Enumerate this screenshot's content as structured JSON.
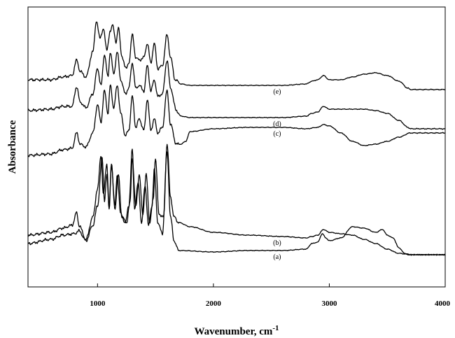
{
  "chart_data": {
    "type": "line",
    "xlabel": "Wavenumber, cm",
    "xlabel_sup": "-1",
    "ylabel": "Absorbance",
    "xlim": [
      400,
      4000
    ],
    "ylim": [
      0,
      10
    ],
    "x_ticks": [
      1000,
      2000,
      3000,
      4000
    ],
    "y_ticks_shown": false,
    "grid": false,
    "legend": "none",
    "series": [
      {
        "name": "(a)",
        "offset": 1.3,
        "points": [
          [
            400,
            0.55
          ],
          [
            600,
            0.65
          ],
          [
            700,
            0.8
          ],
          [
            780,
            0.9
          ],
          [
            820,
            1.35
          ],
          [
            840,
            0.9
          ],
          [
            900,
            0.4
          ],
          [
            960,
            1.2
          ],
          [
            1000,
            2.2
          ],
          [
            1030,
            3.4
          ],
          [
            1050,
            2.0
          ],
          [
            1080,
            3.1
          ],
          [
            1100,
            1.6
          ],
          [
            1120,
            3.1
          ],
          [
            1150,
            1.6
          ],
          [
            1170,
            2.7
          ],
          [
            1200,
            1.3
          ],
          [
            1240,
            1.0
          ],
          [
            1270,
            1.6
          ],
          [
            1300,
            3.6
          ],
          [
            1320,
            1.5
          ],
          [
            1350,
            2.4
          ],
          [
            1380,
            1.0
          ],
          [
            1410,
            2.3
          ],
          [
            1440,
            0.9
          ],
          [
            1470,
            1.6
          ],
          [
            1490,
            2.9
          ],
          [
            1520,
            1.0
          ],
          [
            1560,
            0.6
          ],
          [
            1600,
            3.5
          ],
          [
            1630,
            1.2
          ],
          [
            1660,
            0.35
          ],
          [
            1700,
            0.0
          ],
          [
            2000,
            -0.05
          ],
          [
            2300,
            0.0
          ],
          [
            2600,
            0.0
          ],
          [
            2800,
            0.05
          ],
          [
            2850,
            0.25
          ],
          [
            2900,
            0.3
          ],
          [
            2940,
            0.6
          ],
          [
            2970,
            0.45
          ],
          [
            3000,
            0.35
          ],
          [
            3100,
            0.45
          ],
          [
            3200,
            0.85
          ],
          [
            3300,
            0.8
          ],
          [
            3400,
            0.65
          ],
          [
            3460,
            0.75
          ],
          [
            3500,
            0.55
          ],
          [
            3550,
            0.45
          ],
          [
            3600,
            0.1
          ],
          [
            3650,
            -0.1
          ],
          [
            3700,
            -0.15
          ],
          [
            4000,
            -0.15
          ]
        ]
      },
      {
        "name": "(b)",
        "offset": 1.0,
        "points": [
          [
            400,
            0.55
          ],
          [
            600,
            0.7
          ],
          [
            700,
            0.85
          ],
          [
            800,
            0.9
          ],
          [
            840,
            1.0
          ],
          [
            900,
            0.65
          ],
          [
            960,
            1.2
          ],
          [
            1000,
            1.9
          ],
          [
            1040,
            3.6
          ],
          [
            1060,
            2.1
          ],
          [
            1080,
            3.0
          ],
          [
            1100,
            1.8
          ],
          [
            1120,
            3.3
          ],
          [
            1150,
            1.8
          ],
          [
            1180,
            3.0
          ],
          [
            1210,
            1.5
          ],
          [
            1250,
            1.3
          ],
          [
            1280,
            2.0
          ],
          [
            1300,
            3.6
          ],
          [
            1330,
            1.9
          ],
          [
            1360,
            3.0
          ],
          [
            1390,
            1.6
          ],
          [
            1420,
            3.0
          ],
          [
            1450,
            1.3
          ],
          [
            1480,
            2.1
          ],
          [
            1500,
            3.6
          ],
          [
            1530,
            1.6
          ],
          [
            1570,
            1.5
          ],
          [
            1600,
            4.1
          ],
          [
            1630,
            2.2
          ],
          [
            1660,
            1.5
          ],
          [
            1700,
            1.3
          ],
          [
            1800,
            1.15
          ],
          [
            2000,
            0.95
          ],
          [
            2300,
            0.85
          ],
          [
            2600,
            0.8
          ],
          [
            2800,
            0.75
          ],
          [
            2850,
            0.8
          ],
          [
            2900,
            0.85
          ],
          [
            2950,
            1.05
          ],
          [
            3000,
            0.95
          ],
          [
            3100,
            0.9
          ],
          [
            3200,
            0.85
          ],
          [
            3300,
            0.7
          ],
          [
            3400,
            0.55
          ],
          [
            3500,
            0.35
          ],
          [
            3600,
            0.2
          ],
          [
            3700,
            0.15
          ],
          [
            4000,
            0.15
          ]
        ]
      },
      {
        "name": "(c)",
        "offset": 4.2,
        "points": [
          [
            400,
            0.5
          ],
          [
            600,
            0.55
          ],
          [
            700,
            0.7
          ],
          [
            780,
            0.75
          ],
          [
            820,
            1.3
          ],
          [
            850,
            0.9
          ],
          [
            900,
            0.8
          ],
          [
            960,
            1.3
          ],
          [
            1000,
            2.3
          ],
          [
            1030,
            1.7
          ],
          [
            1060,
            2.8
          ],
          [
            1090,
            2.0
          ],
          [
            1110,
            3.0
          ],
          [
            1140,
            2.2
          ],
          [
            1170,
            3.0
          ],
          [
            1200,
            2.0
          ],
          [
            1240,
            1.2
          ],
          [
            1270,
            1.4
          ],
          [
            1300,
            2.6
          ],
          [
            1330,
            1.5
          ],
          [
            1360,
            1.8
          ],
          [
            1400,
            1.4
          ],
          [
            1430,
            2.5
          ],
          [
            1460,
            1.4
          ],
          [
            1490,
            1.8
          ],
          [
            1520,
            1.3
          ],
          [
            1560,
            1.5
          ],
          [
            1600,
            2.8
          ],
          [
            1630,
            1.6
          ],
          [
            1680,
            0.9
          ],
          [
            1720,
            0.9
          ],
          [
            1760,
            1.0
          ],
          [
            1800,
            1.35
          ],
          [
            2000,
            1.45
          ],
          [
            2300,
            1.5
          ],
          [
            2600,
            1.5
          ],
          [
            2800,
            1.45
          ],
          [
            2900,
            1.5
          ],
          [
            2950,
            1.6
          ],
          [
            3000,
            1.55
          ],
          [
            3100,
            1.3
          ],
          [
            3200,
            1.0
          ],
          [
            3300,
            0.85
          ],
          [
            3400,
            0.9
          ],
          [
            3500,
            1.0
          ],
          [
            3600,
            1.15
          ],
          [
            3700,
            1.3
          ],
          [
            4000,
            1.3
          ]
        ]
      },
      {
        "name": "(d)",
        "offset": 5.5,
        "points": [
          [
            400,
            0.8
          ],
          [
            600,
            0.85
          ],
          [
            700,
            0.95
          ],
          [
            780,
            0.95
          ],
          [
            820,
            1.65
          ],
          [
            850,
            1.1
          ],
          [
            900,
            0.9
          ],
          [
            960,
            1.4
          ],
          [
            1000,
            2.3
          ],
          [
            1030,
            1.7
          ],
          [
            1060,
            2.8
          ],
          [
            1090,
            2.0
          ],
          [
            1110,
            2.9
          ],
          [
            1140,
            2.1
          ],
          [
            1170,
            2.9
          ],
          [
            1200,
            1.9
          ],
          [
            1240,
            1.4
          ],
          [
            1270,
            1.6
          ],
          [
            1300,
            2.5
          ],
          [
            1330,
            1.6
          ],
          [
            1360,
            1.7
          ],
          [
            1400,
            1.5
          ],
          [
            1430,
            2.4
          ],
          [
            1460,
            1.5
          ],
          [
            1490,
            1.9
          ],
          [
            1520,
            1.3
          ],
          [
            1560,
            1.4
          ],
          [
            1600,
            2.6
          ],
          [
            1630,
            1.6
          ],
          [
            1680,
            0.8
          ],
          [
            1720,
            0.6
          ],
          [
            1800,
            0.55
          ],
          [
            2000,
            0.55
          ],
          [
            2300,
            0.55
          ],
          [
            2600,
            0.55
          ],
          [
            2800,
            0.6
          ],
          [
            2850,
            0.7
          ],
          [
            2900,
            0.75
          ],
          [
            2950,
            0.95
          ],
          [
            3000,
            0.85
          ],
          [
            3100,
            0.85
          ],
          [
            3200,
            0.85
          ],
          [
            3300,
            0.85
          ],
          [
            3400,
            0.8
          ],
          [
            3500,
            0.7
          ],
          [
            3600,
            0.45
          ],
          [
            3680,
            0.2
          ],
          [
            3700,
            0.15
          ],
          [
            4000,
            0.15
          ]
        ]
      },
      {
        "name": "(e)",
        "offset": 6.9,
        "points": [
          [
            400,
            0.5
          ],
          [
            600,
            0.5
          ],
          [
            700,
            0.6
          ],
          [
            780,
            0.65
          ],
          [
            820,
            1.2
          ],
          [
            850,
            0.8
          ],
          [
            900,
            0.6
          ],
          [
            960,
            1.5
          ],
          [
            990,
            2.6
          ],
          [
            1020,
            2.0
          ],
          [
            1050,
            2.3
          ],
          [
            1080,
            1.6
          ],
          [
            1110,
            2.2
          ],
          [
            1130,
            2.5
          ],
          [
            1160,
            1.8
          ],
          [
            1180,
            2.4
          ],
          [
            1210,
            1.3
          ],
          [
            1250,
            0.9
          ],
          [
            1270,
            1.1
          ],
          [
            1300,
            2.1
          ],
          [
            1330,
            1.3
          ],
          [
            1360,
            1.2
          ],
          [
            1400,
            1.3
          ],
          [
            1430,
            1.8
          ],
          [
            1460,
            1.1
          ],
          [
            1490,
            1.8
          ],
          [
            1520,
            0.9
          ],
          [
            1560,
            1.0
          ],
          [
            1600,
            2.1
          ],
          [
            1630,
            1.3
          ],
          [
            1670,
            0.5
          ],
          [
            1720,
            0.35
          ],
          [
            1800,
            0.3
          ],
          [
            2000,
            0.3
          ],
          [
            2300,
            0.3
          ],
          [
            2600,
            0.3
          ],
          [
            2800,
            0.35
          ],
          [
            2850,
            0.45
          ],
          [
            2900,
            0.5
          ],
          [
            2950,
            0.65
          ],
          [
            3000,
            0.5
          ],
          [
            3100,
            0.5
          ],
          [
            3200,
            0.6
          ],
          [
            3300,
            0.7
          ],
          [
            3400,
            0.75
          ],
          [
            3500,
            0.65
          ],
          [
            3600,
            0.45
          ],
          [
            3680,
            0.2
          ],
          [
            3700,
            0.15
          ],
          [
            4000,
            0.15
          ]
        ]
      }
    ]
  }
}
